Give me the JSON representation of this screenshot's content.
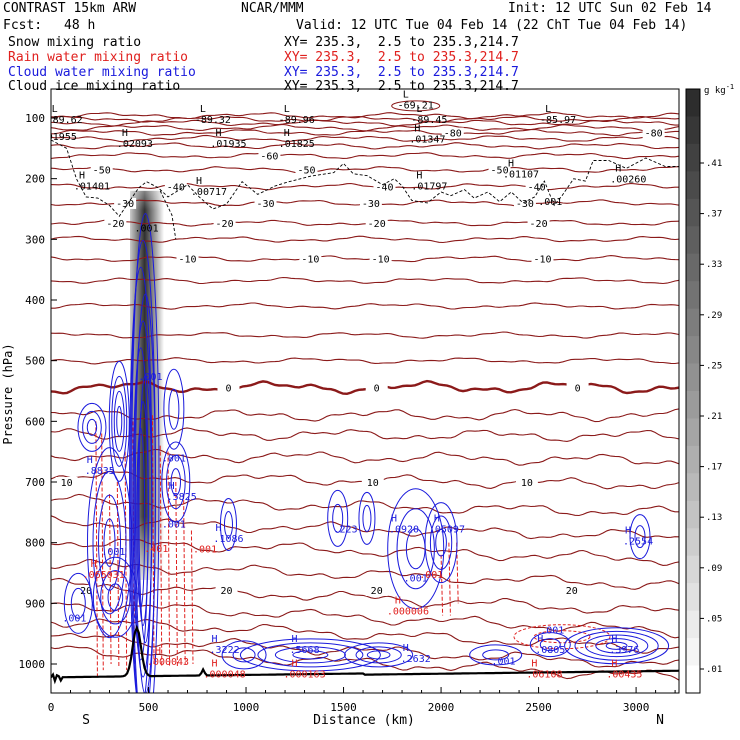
{
  "header": {
    "model": "CONTRAST 15km ARW",
    "org": "NCAR/MMM",
    "init": "Init: 12 UTC Sun 02 Feb 14",
    "fcst_label": "Fcst:",
    "fcst_value": "48 h",
    "valid": "Valid: 12 UTC Tue 04 Feb 14 (22 ChT Tue 04 Feb 14)"
  },
  "fields": [
    {
      "name": "Snow mixing ratio",
      "xy": "XY= 235.3,  2.5 to 235.3,214.7",
      "color": "#000000"
    },
    {
      "name": "Rain water mixing ratio",
      "xy": "XY= 235.3,  2.5 to 235.3,214.7",
      "color": "#e0201e"
    },
    {
      "name": "Cloud water mixing ratio",
      "xy": "XY= 235.3,  2.5 to 235.3,214.7",
      "color": "#1a1adc"
    },
    {
      "name": "Cloud ice mixing ratio",
      "xy": "XY= 235.3,  2.5 to 235.3,214.7",
      "color": "#000000"
    }
  ],
  "colors": {
    "temp": "#8b1a1a",
    "zero": "#8b1a1a",
    "rain": "#e0201e",
    "cloud": "#1a1adc",
    "ice": "#000000",
    "terrain": "#000000"
  },
  "chart_data": {
    "type": "cross-section",
    "title": "Snow / rain / cloud water / cloud ice mixing ratio cross-section",
    "xlabel": "Distance (km)",
    "ylabel": "Pressure (hPa)",
    "xlim": [
      0,
      3220
    ],
    "ylim": [
      1040,
      55
    ],
    "x_ticks": [
      0,
      500,
      1000,
      1500,
      2000,
      2500,
      3000
    ],
    "y_ticks": [
      100,
      200,
      300,
      400,
      500,
      600,
      700,
      800,
      900,
      1000
    ],
    "x_endpoints": {
      "left": "S",
      "right": "N"
    },
    "colorbar": {
      "unit": "g kg",
      "unit_exp": "-1",
      "ticks": [
        ".01",
        ".05",
        ".09",
        ".13",
        ".17",
        ".21",
        ".25",
        ".29",
        ".33",
        ".37",
        ".41"
      ],
      "min": 0.01,
      "max": 0.45
    },
    "temperature_isotherms_C": [
      {
        "label": "-80",
        "p": 124,
        "at_x": [
          2060,
          3090
        ]
      },
      {
        "label": "-60",
        "p": 162,
        "at_x": [
          1120
        ]
      },
      {
        "label": "-50",
        "p": 185,
        "at_x": [
          260,
          1310,
          2300
        ]
      },
      {
        "label": "-40",
        "p": 213,
        "at_x": [
          640,
          1710,
          2490
        ]
      },
      {
        "label": "-30",
        "p": 240,
        "at_x": [
          380,
          1100,
          1640,
          2430
        ]
      },
      {
        "label": "-20",
        "p": 273,
        "at_x": [
          330,
          890,
          1670,
          2500
        ]
      },
      {
        "label": "-10",
        "p": 332,
        "at_x": [
          700,
          1330,
          1690,
          2520
        ]
      },
      {
        "label": "0",
        "p": 544,
        "at_x": [
          910,
          1670,
          2700
        ]
      },
      {
        "label": "10",
        "p": 700,
        "at_x": [
          80,
          1650,
          2440
        ]
      },
      {
        "label": "20",
        "p": 878,
        "at_x": [
          180,
          900,
          1670,
          2670
        ]
      }
    ],
    "extremes_temp": [
      {
        "label": "-69.21",
        "x": 1870,
        "p": 84
      },
      {
        "label": "-89.62",
        "x": 70,
        "p": 108
      },
      {
        "label": "-89.32",
        "x": 830,
        "p": 108
      },
      {
        "label": "-89.96",
        "x": 1260,
        "p": 108
      },
      {
        "label": "-89.45",
        "x": 1940,
        "p": 108
      },
      {
        "label": "-85.97",
        "x": 2600,
        "p": 108
      }
    ],
    "extremes_ice": [
      {
        "label": ".01955",
        "x": 40,
        "p": 136
      },
      {
        "label": ".02093",
        "x": 430,
        "p": 148
      },
      {
        "label": ".01935",
        "x": 910,
        "p": 148
      },
      {
        "label": ".01825",
        "x": 1260,
        "p": 148
      },
      {
        "label": ".01347",
        "x": 1930,
        "p": 140
      },
      {
        "label": ".01401",
        "x": 210,
        "p": 218
      },
      {
        "label": ".00717",
        "x": 810,
        "p": 227
      },
      {
        "label": ".01797",
        "x": 1940,
        "p": 218
      },
      {
        "label": ".01107",
        "x": 2410,
        "p": 198
      },
      {
        "label": ".00260",
        "x": 2960,
        "p": 206
      },
      {
        "label": ".001",
        "x": 490,
        "p": 287
      },
      {
        "label": ".001",
        "x": 2560,
        "p": 243
      }
    ],
    "extremes_cloud_water": [
      {
        "label": ".8835",
        "x": 250,
        "p": 687
      },
      {
        "label": ".5825",
        "x": 670,
        "p": 730
      },
      {
        "label": ".1086",
        "x": 910,
        "p": 799
      },
      {
        "label": ".223",
        "x": 1510,
        "p": 783
      },
      {
        "label": ".0920",
        "x": 1810,
        "p": 783
      },
      {
        "label": ".05097",
        "x": 2030,
        "p": 783
      },
      {
        "label": ".2554",
        "x": 3010,
        "p": 803
      },
      {
        "label": ".2632",
        "x": 1870,
        "p": 997
      },
      {
        "label": ".0805",
        "x": 2560,
        "p": 982
      },
      {
        "label": ".3976",
        "x": 2940,
        "p": 982
      },
      {
        "label": ".3222",
        "x": 890,
        "p": 982
      },
      {
        "label": ".5668",
        "x": 1300,
        "p": 982
      },
      {
        "label": ".001",
        "x": 510,
        "p": 532
      },
      {
        "label": ".001",
        "x": 630,
        "p": 666
      },
      {
        "label": ".001",
        "x": 630,
        "p": 775
      },
      {
        "label": ".001",
        "x": 320,
        "p": 820
      },
      {
        "label": ".001",
        "x": 1870,
        "p": 864
      },
      {
        "label": ".001",
        "x": 120,
        "p": 930
      },
      {
        "label": ".001",
        "x": 2570,
        "p": 950
      },
      {
        "label": ".001",
        "x": 2320,
        "p": 1001
      }
    ],
    "extremes_rain": [
      {
        "label": ".065031",
        "x": 270,
        "p": 858
      },
      {
        "label": ".401",
        "x": 540,
        "p": 815
      },
      {
        "label": ".001",
        "x": 790,
        "p": 816
      },
      {
        "label": ".000043",
        "x": 600,
        "p": 1002
      },
      {
        "label": ".000048",
        "x": 890,
        "p": 1022
      },
      {
        "label": ".000163",
        "x": 1300,
        "p": 1022
      },
      {
        "label": ".000006",
        "x": 1830,
        "p": 918
      },
      {
        "label": ".06108",
        "x": 2530,
        "p": 1022
      },
      {
        "label": ".00435",
        "x": 2940,
        "p": 1022
      },
      {
        "label": ".001",
        "x": 1950,
        "p": 858
      },
      {
        "label": ".001",
        "x": 360,
        "p": 1070
      },
      {
        "label": ".001",
        "x": 2610,
        "p": 1070
      }
    ]
  }
}
